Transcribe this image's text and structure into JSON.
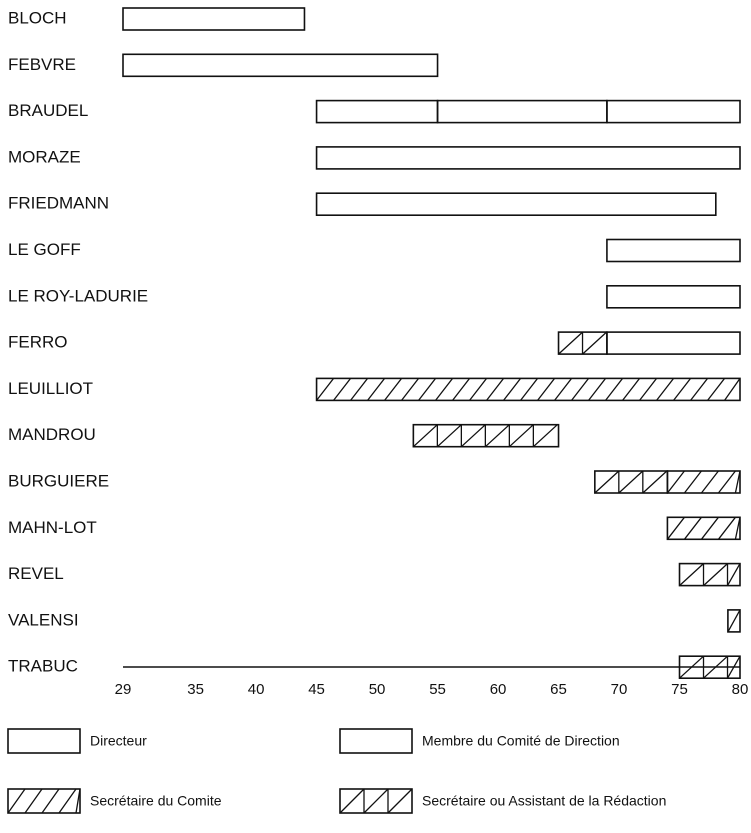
{
  "chart_data": {
    "type": "gantt",
    "xlim": [
      29,
      80
    ],
    "xticks": [
      29,
      35,
      40,
      45,
      50,
      55,
      60,
      65,
      70,
      75,
      80
    ],
    "legend": [
      {
        "name": "Directeur",
        "style": "plain"
      },
      {
        "name": "Membre du Comité de Direction",
        "style": "plain"
      },
      {
        "name": "Secrétaire du Comite",
        "style": "hatch"
      },
      {
        "name": "Secrétaire ou Assistant de la Rédaction",
        "style": "hatch-divided"
      }
    ],
    "rows": [
      {
        "name": "BLOCH",
        "segments": [
          {
            "start": 29,
            "end": 44,
            "role": 0
          }
        ]
      },
      {
        "name": "FEBVRE",
        "segments": [
          {
            "start": 29,
            "end": 55,
            "role": 0
          }
        ]
      },
      {
        "name": "BRAUDEL",
        "segments": [
          {
            "start": 45,
            "end": 55,
            "role": 1
          },
          {
            "start": 55,
            "end": 69,
            "role": 0
          },
          {
            "start": 69,
            "end": 80,
            "role": 1
          }
        ]
      },
      {
        "name": "MORAZE",
        "segments": [
          {
            "start": 45,
            "end": 80,
            "role": 1
          }
        ]
      },
      {
        "name": "FRIEDMANN",
        "segments": [
          {
            "start": 45,
            "end": 78,
            "role": 1
          }
        ]
      },
      {
        "name": "LE GOFF",
        "segments": [
          {
            "start": 69,
            "end": 80,
            "role": 1
          }
        ]
      },
      {
        "name": "LE ROY-LADURIE",
        "segments": [
          {
            "start": 69,
            "end": 80,
            "role": 1
          }
        ]
      },
      {
        "name": "FERRO",
        "segments": [
          {
            "start": 65,
            "end": 69,
            "role": 3
          },
          {
            "start": 69,
            "end": 80,
            "role": 1
          }
        ]
      },
      {
        "name": "LEUILLIOT",
        "segments": [
          {
            "start": 45,
            "end": 80,
            "role": 2
          }
        ]
      },
      {
        "name": "MANDROU",
        "segments": [
          {
            "start": 53,
            "end": 65,
            "role": 3
          }
        ]
      },
      {
        "name": "BURGUIERE",
        "segments": [
          {
            "start": 68,
            "end": 74,
            "role": 3
          },
          {
            "start": 74,
            "end": 80,
            "role": 2
          }
        ]
      },
      {
        "name": "MAHN-LOT",
        "segments": [
          {
            "start": 74,
            "end": 80,
            "role": 2
          }
        ]
      },
      {
        "name": "REVEL",
        "segments": [
          {
            "start": 75,
            "end": 80,
            "role": 3
          }
        ]
      },
      {
        "name": "VALENSI",
        "segments": [
          {
            "start": 79,
            "end": 80,
            "role": 3
          }
        ]
      },
      {
        "name": "TRABUC",
        "segments": [
          {
            "start": 75,
            "end": 80,
            "role": 3
          }
        ]
      }
    ]
  }
}
